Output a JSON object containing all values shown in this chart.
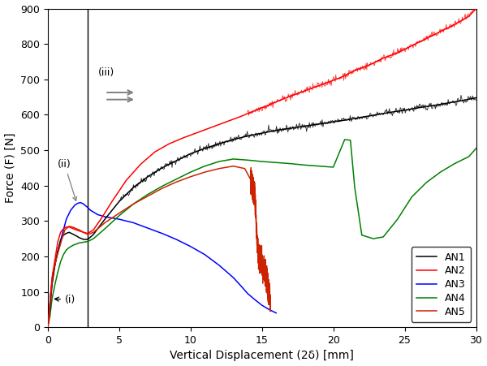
{
  "xlabel": "Vertical Displacement (2δ) [mm]",
  "ylabel": "Force (F) [N]",
  "xlim": [
    0,
    30
  ],
  "ylim": [
    0,
    900
  ],
  "xticks": [
    0,
    5,
    10,
    15,
    20,
    25,
    30
  ],
  "yticks": [
    0,
    100,
    200,
    300,
    400,
    500,
    600,
    700,
    800,
    900
  ],
  "vline_x": 2.8,
  "colors": {
    "AN1": "black",
    "AN2": "red",
    "AN3": "blue",
    "AN4": "green",
    "AN5": "red"
  },
  "AN1": {
    "x": [
      0,
      0.15,
      0.3,
      0.5,
      0.7,
      0.9,
      1.1,
      1.3,
      1.5,
      1.8,
      2.0,
      2.2,
      2.5,
      2.8,
      3.2,
      4.0,
      5.0,
      6.0,
      7.0,
      8.0,
      9.0,
      10.0,
      11.0,
      12.0,
      13.0,
      14.0,
      15.0,
      16.0,
      17.0,
      18.0,
      19.0,
      20.0,
      21.0,
      22.0,
      23.0,
      24.0,
      25.0,
      26.0,
      27.0,
      28.0,
      29.0,
      30.0
    ],
    "y": [
      0,
      50,
      120,
      175,
      215,
      245,
      260,
      265,
      268,
      262,
      258,
      253,
      248,
      248,
      262,
      305,
      355,
      395,
      425,
      450,
      470,
      490,
      505,
      518,
      530,
      540,
      548,
      556,
      562,
      568,
      574,
      580,
      586,
      593,
      600,
      607,
      613,
      620,
      626,
      633,
      640,
      648
    ]
  },
  "AN2": {
    "x": [
      0,
      0.15,
      0.3,
      0.5,
      0.7,
      0.9,
      1.1,
      1.3,
      1.5,
      1.8,
      2.0,
      2.2,
      2.5,
      2.8,
      3.2,
      3.8,
      4.5,
      5.5,
      6.5,
      7.5,
      8.5,
      9.5,
      10.5,
      11.5,
      12.5,
      13.5,
      14.5,
      15.5,
      16.5,
      17.5,
      18.5,
      19.5,
      20.5,
      21.5,
      22.5,
      23.5,
      24.5,
      25.5,
      26.5,
      27.5,
      28.5,
      29.5,
      30.0
    ],
    "y": [
      0,
      60,
      140,
      190,
      240,
      268,
      278,
      283,
      283,
      278,
      275,
      272,
      268,
      265,
      275,
      310,
      355,
      415,
      460,
      495,
      518,
      535,
      550,
      565,
      580,
      595,
      612,
      628,
      645,
      660,
      675,
      690,
      705,
      725,
      740,
      760,
      775,
      795,
      815,
      835,
      855,
      878,
      900
    ]
  },
  "AN3": {
    "x": [
      0,
      0.1,
      0.2,
      0.4,
      0.6,
      0.9,
      1.1,
      1.3,
      1.6,
      1.9,
      2.1,
      2.3,
      2.5,
      2.8,
      3.0,
      3.5,
      4.0,
      5.0,
      6.0,
      7.0,
      8.0,
      9.0,
      10.0,
      11.0,
      12.0,
      13.0,
      13.5,
      14.0,
      14.5,
      15.0,
      15.5,
      15.8,
      16.0
    ],
    "y": [
      0,
      40,
      95,
      155,
      195,
      245,
      275,
      305,
      330,
      345,
      350,
      352,
      348,
      338,
      330,
      318,
      312,
      305,
      295,
      280,
      265,
      248,
      228,
      205,
      175,
      140,
      118,
      95,
      78,
      62,
      50,
      44,
      40
    ]
  },
  "AN4": {
    "x": [
      0,
      0.15,
      0.3,
      0.5,
      0.7,
      0.9,
      1.1,
      1.3,
      1.5,
      1.8,
      2.0,
      2.2,
      2.5,
      2.8,
      3.2,
      4.0,
      5.0,
      6.0,
      7.0,
      8.0,
      9.0,
      10.0,
      11.0,
      12.0,
      13.0,
      14.0,
      15.0,
      16.0,
      17.0,
      18.0,
      19.0,
      20.0,
      20.8,
      21.2,
      21.5,
      22.0,
      22.8,
      23.5,
      24.5,
      25.5,
      26.5,
      27.5,
      28.5,
      29.5,
      30.0
    ],
    "y": [
      0,
      30,
      80,
      120,
      155,
      185,
      205,
      218,
      225,
      232,
      235,
      238,
      240,
      242,
      250,
      278,
      315,
      348,
      375,
      398,
      418,
      438,
      455,
      468,
      475,
      472,
      468,
      465,
      462,
      458,
      455,
      452,
      530,
      528,
      395,
      260,
      250,
      255,
      305,
      368,
      408,
      438,
      462,
      482,
      505
    ]
  },
  "AN5": {
    "x": [
      0,
      0.1,
      0.2,
      0.35,
      0.55,
      0.75,
      1.0,
      1.2,
      1.5,
      1.8,
      2.0,
      2.2,
      2.5,
      2.8,
      3.2,
      4.0,
      5.0,
      6.0,
      7.0,
      8.0,
      9.0,
      10.0,
      11.0,
      12.0,
      13.0,
      13.8,
      14.2,
      14.5,
      14.55,
      14.6,
      14.65,
      14.7,
      14.75,
      14.8,
      14.85,
      14.9,
      14.95,
      15.0,
      15.05,
      15.1,
      15.15,
      15.2,
      15.25,
      15.3,
      15.35,
      15.4,
      15.45,
      15.5,
      15.55,
      15.6
    ],
    "y": [
      0,
      35,
      90,
      150,
      185,
      215,
      250,
      275,
      285,
      282,
      278,
      275,
      268,
      262,
      268,
      295,
      322,
      348,
      370,
      392,
      410,
      425,
      438,
      448,
      455,
      448,
      418,
      370,
      335,
      295,
      260,
      230,
      200,
      215,
      185,
      205,
      175,
      195,
      165,
      150,
      170,
      140,
      155,
      130,
      145,
      118,
      105,
      95,
      85,
      75
    ]
  }
}
